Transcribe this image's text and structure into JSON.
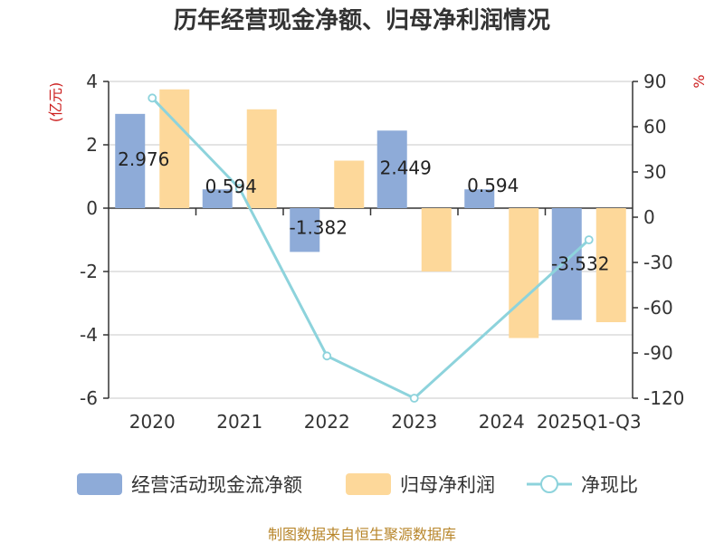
{
  "chart_data": {
    "type": "bar",
    "title": "历年经营现金净额、归母净利润情况",
    "categories": [
      "2020",
      "2021",
      "2022",
      "2023",
      "2024",
      "2025Q1-Q3"
    ],
    "left_axis": {
      "unit": "(亿元)",
      "ticks": [
        4,
        2,
        0,
        -2,
        -4,
        -6
      ],
      "ylim": [
        -6,
        4
      ]
    },
    "right_axis": {
      "unit": "%",
      "ticks": [
        90,
        60,
        30,
        0,
        -30,
        -60,
        -90,
        -120
      ],
      "ylim": [
        -120,
        90
      ]
    },
    "series": [
      {
        "name": "经营活动现金流净额",
        "kind": "bar",
        "axis": "left",
        "color": "#8eabd8",
        "values": [
          2.976,
          0.594,
          -1.382,
          2.449,
          0.594,
          -3.532
        ],
        "labels": [
          "2.976",
          "0.594",
          "-1.382",
          "2.449",
          "0.594",
          "-3.532"
        ]
      },
      {
        "name": "归母净利润",
        "kind": "bar",
        "axis": "left",
        "color": "#fdd89a",
        "values": [
          3.75,
          3.12,
          1.5,
          -2.0,
          -4.1,
          -3.6
        ]
      },
      {
        "name": "净现比",
        "kind": "line",
        "axis": "right",
        "color": "#8dd3dc",
        "values": [
          79,
          19,
          -92,
          -120,
          null,
          -15
        ]
      }
    ],
    "source": "制图数据来自恒生聚源数据库"
  }
}
